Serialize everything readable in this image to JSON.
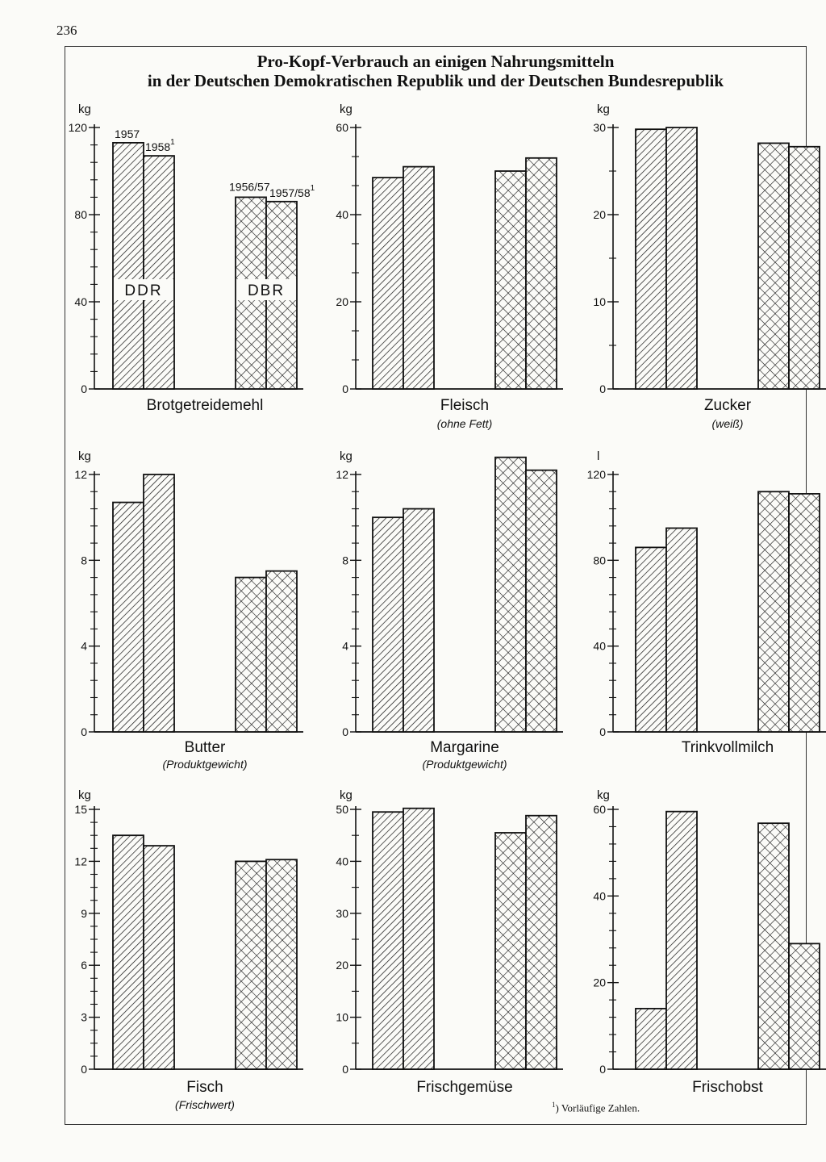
{
  "page_number": "236",
  "title_line1": "Pro-Kopf-Verbrauch an einigen Nahrungsmitteln",
  "title_line2": "in der Deutschen Demokratischen Republik und der Deutschen Bundesrepublik",
  "footnote": {
    "marker": "1",
    "text": ") Vorläufige Zahlen."
  },
  "legend": {
    "ddr": "DDR",
    "dbr": "DBR",
    "ddr_years": [
      "1957",
      "1958"
    ],
    "dbr_years": [
      "1956/57",
      "1957/58"
    ],
    "footnote_marker": "1"
  },
  "colors": {
    "ink": "#111111",
    "paper": "#fbfbf8"
  },
  "chart_data": [
    {
      "type": "bar",
      "title": "Brotgetreidemehl",
      "subtitle": "",
      "unit": "kg",
      "ylim": [
        0,
        120
      ],
      "ticks": [
        "0",
        "40",
        "80",
        "120"
      ],
      "minor_per_major": 4,
      "categories": [
        "DDR 1957",
        "DDR 1958",
        "DBR 1956/57",
        "DBR 1957/58"
      ],
      "values": [
        113,
        107,
        88,
        86
      ]
    },
    {
      "type": "bar",
      "title": "Fleisch",
      "subtitle": "(ohne Fett)",
      "unit": "kg",
      "ylim": [
        0,
        60
      ],
      "ticks": [
        "0",
        "20",
        "40",
        "60"
      ],
      "minor_per_major": 2,
      "categories": [
        "DDR 1957",
        "DDR 1958",
        "DBR 1956/57",
        "DBR 1957/58"
      ],
      "values": [
        48.5,
        51,
        50,
        53
      ]
    },
    {
      "type": "bar",
      "title": "Zucker",
      "subtitle": "(weiß)",
      "unit": "kg",
      "ylim": [
        0,
        30
      ],
      "ticks": [
        "0",
        "10",
        "20",
        "30"
      ],
      "minor_per_major": 1,
      "categories": [
        "DDR 1957",
        "DDR 1958",
        "DBR 1956/57",
        "DBR 1957/58"
      ],
      "values": [
        29.8,
        30,
        28.2,
        27.8
      ]
    },
    {
      "type": "bar",
      "title": "Butter",
      "subtitle": "(Produktgewicht)",
      "unit": "kg",
      "ylim": [
        0,
        13.2
      ],
      "ticks": [
        "0",
        "4",
        "8",
        "12"
      ],
      "minor_per_major": 4,
      "categories": [
        "DDR 1957",
        "DDR 1958",
        "DBR 1956/57",
        "DBR 1957/58"
      ],
      "values": [
        10.7,
        12,
        7.2,
        7.5
      ]
    },
    {
      "type": "bar",
      "title": "Margarine",
      "subtitle": "(Produktgewicht)",
      "unit": "kg",
      "ylim": [
        0,
        13.2
      ],
      "ticks": [
        "0",
        "4",
        "8",
        "12"
      ],
      "minor_per_major": 4,
      "categories": [
        "DDR 1957",
        "DDR 1958",
        "DBR 1956/57",
        "DBR 1957/58"
      ],
      "values": [
        10,
        10.4,
        12.8,
        12.2
      ]
    },
    {
      "type": "bar",
      "title": "Trinkvollmilch",
      "subtitle": "",
      "unit": "l",
      "ylim": [
        0,
        120
      ],
      "ticks": [
        "0",
        "40",
        "80",
        "120"
      ],
      "minor_per_major": 4,
      "categories": [
        "DDR 1957",
        "DDR 1958",
        "DBR 1956/57",
        "DBR 1957/58"
      ],
      "values": [
        86,
        95,
        112,
        111
      ]
    },
    {
      "type": "bar",
      "title": "Fisch",
      "subtitle": "(Frischwert)",
      "unit": "kg",
      "ylim": [
        0,
        15
      ],
      "ticks": [
        "0",
        "3",
        "6",
        "9",
        "12",
        "15"
      ],
      "minor_per_major": 3,
      "categories": [
        "DDR 1957",
        "DDR 1958",
        "DBR 1956/57",
        "DBR 1957/58"
      ],
      "values": [
        13.5,
        12.9,
        12,
        12.1
      ]
    },
    {
      "type": "bar",
      "title": "Frischgemüse",
      "subtitle": "",
      "unit": "kg",
      "ylim": [
        0,
        50
      ],
      "ticks": [
        "0",
        "10",
        "20",
        "30",
        "40",
        "50"
      ],
      "minor_per_major": 1,
      "categories": [
        "DDR 1957",
        "DDR 1958",
        "DBR 1956/57",
        "DBR 1957/58"
      ],
      "values": [
        49.5,
        50.2,
        45.5,
        48.8
      ]
    },
    {
      "type": "bar",
      "title": "Frischobst",
      "subtitle": "",
      "unit": "kg",
      "ylim": [
        0,
        60
      ],
      "ticks": [
        "0",
        "20",
        "40",
        "60"
      ],
      "minor_per_major": 4,
      "categories": [
        "DDR 1957",
        "DDR 1958",
        "DBR 1956/57",
        "DBR 1957/58"
      ],
      "values": [
        14,
        59.5,
        56.8,
        29
      ]
    }
  ]
}
